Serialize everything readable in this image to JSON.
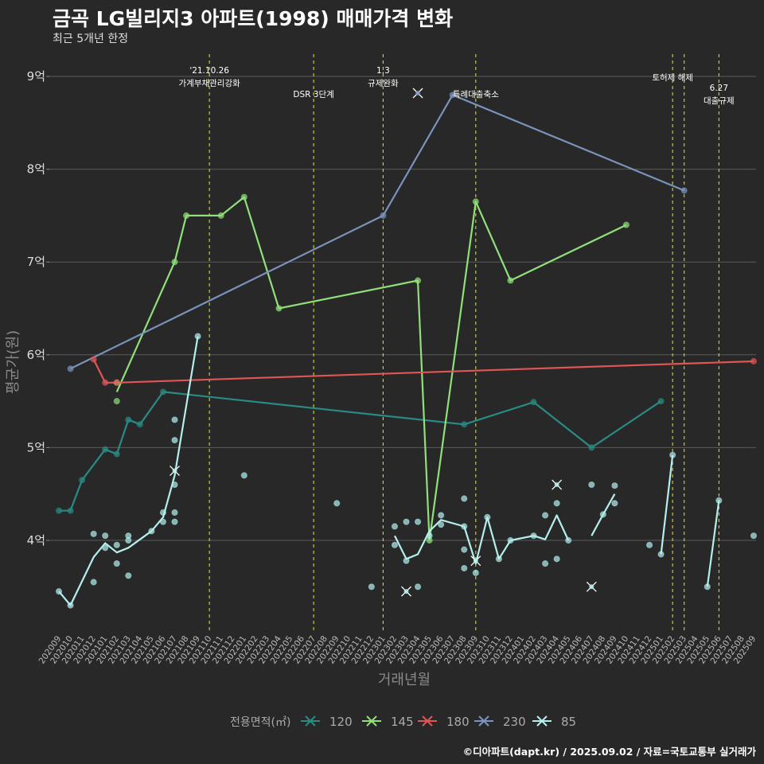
{
  "title": "금곡 LG빌리지3 아파트(1998) 매매가격 변화",
  "subtitle": "최근 5개년 한정",
  "caption": "©디아파트(dapt.kr) / 2025.09.02 / 자료=국토교통부 실거래가",
  "chart_data": {
    "type": "line",
    "xlabel": "거래년월",
    "ylabel": "평균가(원)",
    "ylim": [
      3.0,
      9.3
    ],
    "yticks": [
      4,
      5,
      6,
      7,
      8,
      9
    ],
    "ytick_labels": [
      "4억",
      "5억",
      "6억",
      "7억",
      "8억",
      "9억"
    ],
    "x_categories": [
      "202009",
      "202010",
      "202011",
      "202012",
      "202101",
      "202102",
      "202103",
      "202104",
      "202105",
      "202106",
      "202107",
      "202108",
      "202109",
      "202110",
      "202111",
      "202112",
      "202201",
      "202202",
      "202203",
      "202204",
      "202205",
      "202206",
      "202207",
      "202208",
      "202209",
      "202210",
      "202211",
      "202212",
      "202301",
      "202302",
      "202303",
      "202304",
      "202305",
      "202306",
      "202307",
      "202308",
      "202309",
      "202310",
      "202311",
      "202312",
      "202401",
      "202402",
      "202403",
      "202404",
      "202405",
      "202406",
      "202407",
      "202408",
      "202409",
      "202410",
      "202411",
      "202412",
      "202501",
      "202502",
      "202503",
      "202504",
      "202505",
      "202506",
      "202507",
      "202508",
      "202509"
    ],
    "legend_title": "전용면적(㎡)",
    "series": [
      {
        "name": "120",
        "color": "#2a8a84",
        "line": [
          [
            "202009",
            4.32
          ],
          [
            "202010",
            4.32
          ],
          [
            "202011",
            4.65
          ],
          [
            "202101",
            4.98
          ],
          [
            "202102",
            4.93
          ],
          [
            "202103",
            5.3
          ],
          [
            "202104",
            5.25
          ],
          [
            "202106",
            5.6
          ],
          [
            "202308",
            5.25
          ],
          [
            "202402",
            5.49
          ],
          [
            "202407",
            5.0
          ],
          [
            "202501",
            5.5
          ]
        ],
        "points": [
          [
            "202009",
            4.32
          ],
          [
            "202010",
            4.32
          ],
          [
            "202011",
            4.65
          ],
          [
            "202101",
            4.98
          ],
          [
            "202102",
            4.93
          ],
          [
            "202103",
            5.3
          ],
          [
            "202104",
            5.25
          ],
          [
            "202106",
            5.6
          ],
          [
            "202308",
            5.25
          ],
          [
            "202402",
            5.49
          ],
          [
            "202407",
            5.0
          ],
          [
            "202501",
            5.5
          ]
        ]
      },
      {
        "name": "145",
        "color": "#90e07a",
        "line": [
          [
            "202102",
            5.6
          ],
          [
            "202107",
            7.0
          ],
          [
            "202108",
            7.5
          ],
          [
            "202111",
            7.5
          ],
          [
            "202201",
            7.7
          ],
          [
            "202204",
            6.5
          ],
          [
            "202304",
            6.8
          ],
          [
            "202305",
            4.0
          ],
          [
            "202309",
            7.65
          ],
          [
            "202312",
            6.8
          ],
          [
            "202410",
            7.4
          ]
        ],
        "points": [
          [
            "202102",
            5.5
          ],
          [
            "202102",
            5.7
          ],
          [
            "202107",
            7.0
          ],
          [
            "202108",
            7.5
          ],
          [
            "202111",
            7.5
          ],
          [
            "202201",
            7.7
          ],
          [
            "202204",
            6.5
          ],
          [
            "202304",
            6.8
          ],
          [
            "202305",
            4.0
          ],
          [
            "202309",
            7.65
          ],
          [
            "202312",
            6.8
          ],
          [
            "202410",
            7.4
          ]
        ]
      },
      {
        "name": "180",
        "color": "#e05555",
        "line": [
          [
            "202012",
            5.95
          ],
          [
            "202101",
            5.7
          ],
          [
            "202102",
            5.7
          ],
          [
            "202509",
            5.93
          ]
        ],
        "points": [
          [
            "202012",
            5.95
          ],
          [
            "202101",
            5.7
          ],
          [
            "202102",
            5.7
          ],
          [
            "202509",
            5.93
          ]
        ]
      },
      {
        "name": "230",
        "color": "#7a93bd",
        "line": [
          [
            "202010",
            5.85
          ],
          [
            "202301",
            7.5
          ],
          [
            "202307",
            8.8
          ],
          [
            "202503",
            7.77
          ]
        ],
        "points": [
          [
            "202010",
            5.85
          ],
          [
            "202301",
            7.5
          ],
          [
            "202307",
            8.8
          ],
          [
            "202503",
            7.77
          ]
        ]
      },
      {
        "name": "85",
        "color": "#b4efee",
        "line": [
          [
            "202009",
            3.45
          ],
          [
            "202010",
            3.3
          ],
          [
            "202012",
            3.82
          ],
          [
            "202101",
            3.97
          ],
          [
            "202102",
            3.87
          ],
          [
            "202103",
            3.92
          ],
          [
            "202105",
            4.1
          ],
          [
            "202106",
            4.25
          ],
          [
            "202107",
            4.7
          ],
          [
            "202109",
            6.2
          ],
          null,
          [
            "202302",
            4.05
          ],
          [
            "202303",
            3.8
          ],
          [
            "202304",
            3.85
          ],
          [
            "202305",
            4.1
          ],
          [
            "202306",
            4.22
          ],
          [
            "202308",
            4.15
          ],
          [
            "202309",
            3.75
          ],
          [
            "202310",
            4.25
          ],
          [
            "202311",
            3.8
          ],
          [
            "202312",
            4.0
          ],
          [
            "202402",
            4.05
          ],
          [
            "202403",
            4.01
          ],
          [
            "202404",
            4.27
          ],
          [
            "202405",
            4.0
          ],
          null,
          [
            "202407",
            4.05
          ],
          [
            "202408",
            4.28
          ],
          [
            "202409",
            4.5
          ],
          null,
          [
            "202501",
            3.85
          ],
          [
            "202502",
            4.92
          ],
          null,
          [
            "202505",
            3.5
          ],
          [
            "202506",
            4.43
          ]
        ],
        "points": [
          [
            "202009",
            3.45
          ],
          [
            "202010",
            3.3
          ],
          [
            "202012",
            4.07
          ],
          [
            "202012",
            3.55
          ],
          [
            "202101",
            4.05
          ],
          [
            "202101",
            3.92
          ],
          [
            "202102",
            3.95
          ],
          [
            "202102",
            3.75
          ],
          [
            "202103",
            4.05
          ],
          [
            "202103",
            3.62
          ],
          [
            "202103",
            4.0
          ],
          [
            "202105",
            4.1
          ],
          [
            "202106",
            4.3
          ],
          [
            "202106",
            4.2
          ],
          [
            "202107",
            5.3
          ],
          [
            "202107",
            5.08
          ],
          [
            "202107",
            4.6
          ],
          [
            "202107",
            4.3
          ],
          [
            "202107",
            4.2
          ],
          [
            "202109",
            6.2
          ],
          [
            "202201",
            4.7
          ],
          [
            "202209",
            4.4
          ],
          [
            "202212",
            3.5
          ],
          [
            "202302",
            4.15
          ],
          [
            "202302",
            3.95
          ],
          [
            "202303",
            4.2
          ],
          [
            "202303",
            3.78
          ],
          [
            "202304",
            4.2
          ],
          [
            "202304",
            3.5
          ],
          [
            "202305",
            4.05
          ],
          [
            "202306",
            4.27
          ],
          [
            "202306",
            4.17
          ],
          [
            "202308",
            4.45
          ],
          [
            "202308",
            4.15
          ],
          [
            "202308",
            3.9
          ],
          [
            "202308",
            3.7
          ],
          [
            "202309",
            3.65
          ],
          [
            "202310",
            4.25
          ],
          [
            "202311",
            3.8
          ],
          [
            "202312",
            4.0
          ],
          [
            "202402",
            4.05
          ],
          [
            "202403",
            4.27
          ],
          [
            "202403",
            3.75
          ],
          [
            "202404",
            4.4
          ],
          [
            "202404",
            3.8
          ],
          [
            "202405",
            4.0
          ],
          [
            "202407",
            4.6
          ],
          [
            "202408",
            4.28
          ],
          [
            "202409",
            4.59
          ],
          [
            "202409",
            4.4
          ],
          [
            "202412",
            3.95
          ],
          [
            "202501",
            3.85
          ],
          [
            "202502",
            4.92
          ],
          [
            "202505",
            3.5
          ],
          [
            "202506",
            4.43
          ],
          [
            "202509",
            4.05
          ]
        ]
      }
    ],
    "cancelled_marks": [
      {
        "series": "230",
        "x": "202304",
        "y": 8.82
      },
      {
        "series": "85",
        "x": "202107",
        "y": 4.75
      },
      {
        "series": "85",
        "x": "202303",
        "y": 3.45
      },
      {
        "series": "85",
        "x": "202309",
        "y": 3.78
      },
      {
        "series": "85",
        "x": "202404",
        "y": 4.6
      },
      {
        "series": "85",
        "x": "202407",
        "y": 3.5
      }
    ],
    "policy_events": [
      {
        "x": "202110",
        "lines": [
          "'21.10.26",
          "가계부채관리강화"
        ],
        "row": 0
      },
      {
        "x": "202207",
        "lines": [
          "DSR 3단계"
        ],
        "row": 2
      },
      {
        "x": "202301",
        "lines": [
          "1.3",
          "규제완화"
        ],
        "row": 0
      },
      {
        "x": "202309",
        "lines": [
          "특례대출축소"
        ],
        "row": 2
      },
      {
        "x": "202502",
        "lines": [
          "토허제 해제"
        ],
        "row": 1
      },
      {
        "x": "202503",
        "lines": [],
        "row": 1
      },
      {
        "x": "202506",
        "lines": [
          "6.27",
          "대출규제"
        ],
        "row": 3
      }
    ]
  }
}
